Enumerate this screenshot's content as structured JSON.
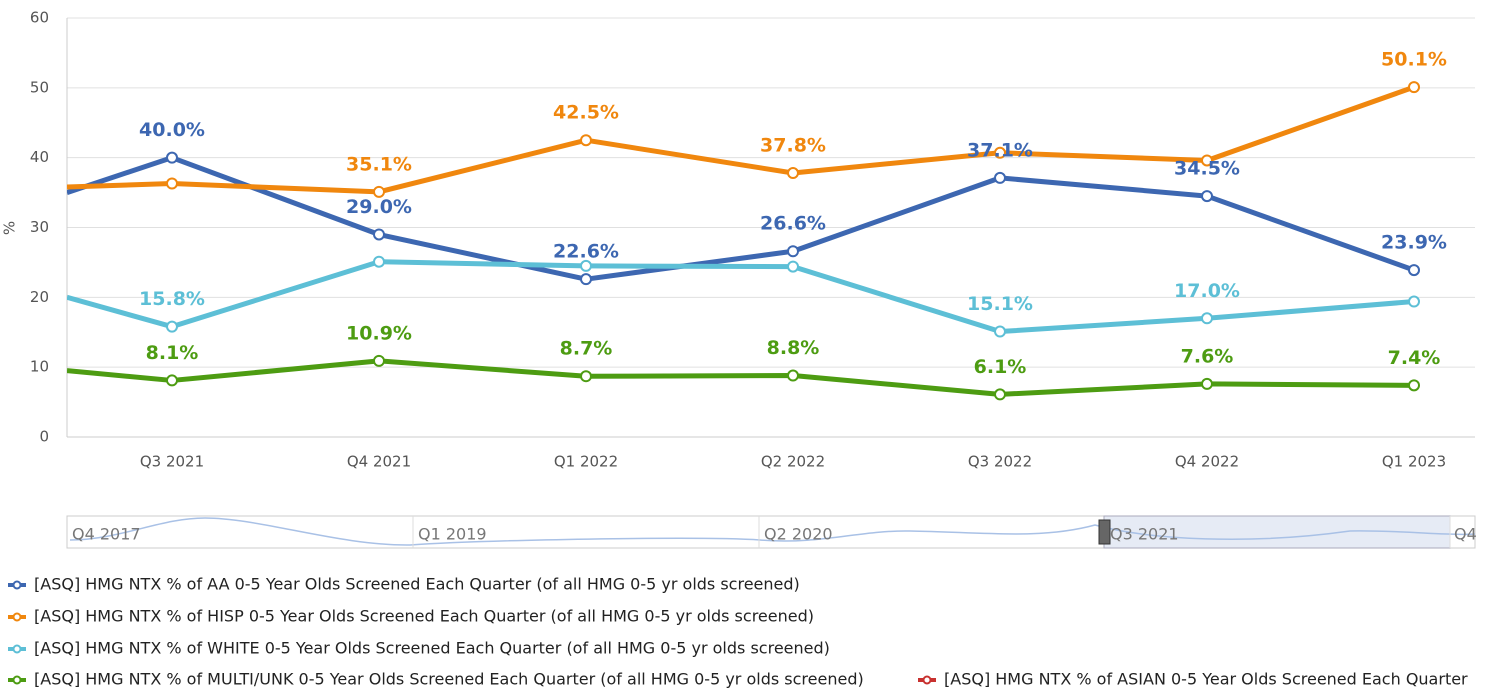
{
  "chart_data": {
    "type": "line",
    "y_label": "%",
    "categories": [
      null,
      "Q3 2021",
      "Q4 2021",
      "Q1 2022",
      "Q2 2022",
      "Q3 2022",
      "Q4 2022",
      "Q1 2023"
    ],
    "ylim": [
      0,
      60
    ],
    "yticks": [
      0,
      10,
      20,
      30,
      40,
      50,
      60
    ],
    "grid": true,
    "series": [
      {
        "name": "[ASQ] HMG NTX % of AA 0-5 Year Olds Screened Each Quarter (of all HMG 0-5 yr olds screened)",
        "color": "#3d67b1",
        "values": [
          35.0,
          40.0,
          29.0,
          22.6,
          26.6,
          37.1,
          34.5,
          23.9
        ],
        "value_labels": [
          null,
          "40.0%",
          "29.0%",
          "22.6%",
          "26.6%",
          "37.1%",
          "34.5%",
          "23.9%"
        ]
      },
      {
        "name": "[ASQ] HMG NTX % of HISP 0-5 Year Olds Screened Each Quarter (of all HMG 0-5 yr olds screened)",
        "color": "#f0870e",
        "values": [
          35.8,
          36.3,
          35.1,
          42.5,
          37.8,
          40.7,
          39.6,
          50.1
        ],
        "value_labels": [
          null,
          null,
          "35.1%",
          "42.5%",
          "37.8%",
          null,
          null,
          "50.1%"
        ]
      },
      {
        "name": "[ASQ] HMG NTX % of WHITE 0-5 Year Olds Screened Each Quarter (of all HMG 0-5 yr olds screened)",
        "color": "#5dbfd6",
        "values": [
          20.0,
          15.8,
          25.1,
          24.5,
          24.4,
          15.1,
          17.0,
          19.4
        ],
        "value_labels": [
          null,
          "15.8%",
          null,
          null,
          null,
          "15.1%",
          "17.0%",
          null
        ]
      },
      {
        "name": "[ASQ] HMG NTX % of MULTI/UNK 0-5 Year Olds Screened Each Quarter (of all HMG 0-5 yr olds screened)",
        "color": "#4d9c12",
        "values": [
          9.5,
          8.1,
          10.9,
          8.7,
          8.8,
          6.1,
          7.6,
          7.4
        ],
        "value_labels": [
          null,
          "8.1%",
          "10.9%",
          "8.7%",
          "8.8%",
          "6.1%",
          "7.6%",
          "7.4%"
        ]
      },
      {
        "name": "[ASQ] HMG NTX % of ASIAN 0-5 Year Olds Screened Each Quarter",
        "color": "#c8312f",
        "values": [
          null,
          null,
          null,
          null,
          null,
          null,
          null,
          null
        ]
      }
    ],
    "navigator": {
      "labels": [
        "Q4 2017",
        "Q1 2019",
        "Q2 2020",
        "Q3 2021",
        "Q4"
      ]
    }
  }
}
